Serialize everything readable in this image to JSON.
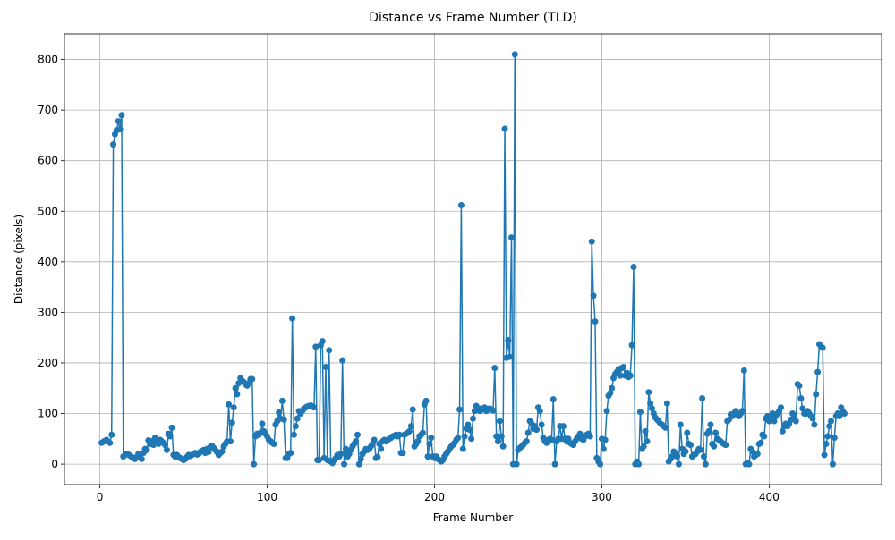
{
  "chart_data": {
    "type": "line",
    "title": "Distance vs Frame Number (TLD)",
    "xlabel": "Frame Number",
    "ylabel": "Distance (pixels)",
    "color": "#1f77b4",
    "grid": true,
    "marker": "circle",
    "xlim": [
      -21.2,
      467.2
    ],
    "ylim": [
      -40.5,
      850.5
    ],
    "xticks": [
      0,
      100,
      200,
      300,
      400
    ],
    "yticks": [
      0,
      100,
      200,
      300,
      400,
      500,
      600,
      700,
      800
    ],
    "x": [
      1,
      2,
      3,
      4,
      5,
      6,
      7,
      8,
      9,
      10,
      11,
      12,
      13,
      14,
      15,
      16,
      17,
      18,
      19,
      20,
      21,
      22,
      23,
      24,
      25,
      26,
      27,
      28,
      29,
      30,
      31,
      32,
      33,
      34,
      35,
      36,
      37,
      38,
      39,
      40,
      41,
      42,
      43,
      44,
      45,
      46,
      47,
      48,
      49,
      50,
      51,
      52,
      53,
      54,
      55,
      56,
      57,
      58,
      59,
      60,
      61,
      62,
      63,
      64,
      65,
      66,
      67,
      68,
      69,
      70,
      71,
      72,
      73,
      74,
      75,
      76,
      77,
      78,
      79,
      80,
      81,
      82,
      83,
      84,
      85,
      86,
      87,
      88,
      89,
      90,
      91,
      92,
      93,
      94,
      95,
      96,
      97,
      98,
      99,
      100,
      101,
      102,
      103,
      104,
      105,
      106,
      107,
      108,
      109,
      110,
      111,
      112,
      113,
      114,
      115,
      116,
      117,
      118,
      119,
      120,
      121,
      122,
      123,
      124,
      125,
      126,
      127,
      128,
      129,
      130,
      131,
      132,
      133,
      134,
      135,
      136,
      137,
      138,
      139,
      140,
      141,
      142,
      143,
      144,
      145,
      146,
      147,
      148,
      149,
      150,
      151,
      152,
      153,
      154,
      155,
      156,
      157,
      158,
      159,
      160,
      161,
      162,
      163,
      164,
      165,
      166,
      167,
      168,
      169,
      170,
      171,
      172,
      173,
      174,
      175,
      176,
      177,
      178,
      179,
      180,
      181,
      182,
      183,
      184,
      185,
      186,
      187,
      188,
      189,
      190,
      191,
      192,
      193,
      194,
      195,
      196,
      197,
      198,
      199,
      200,
      201,
      202,
      203,
      204,
      205,
      206,
      207,
      208,
      209,
      210,
      211,
      212,
      213,
      214,
      215,
      216,
      217,
      218,
      219,
      220,
      221,
      222,
      223,
      224,
      225,
      226,
      227,
      228,
      229,
      230,
      231,
      232,
      233,
      234,
      235,
      236,
      237,
      238,
      239,
      240,
      241,
      242,
      243,
      244,
      245,
      246,
      247,
      248,
      249,
      250,
      251,
      252,
      253,
      254,
      255,
      256,
      257,
      258,
      259,
      260,
      261,
      262,
      263,
      264,
      265,
      266,
      267,
      268,
      269,
      270,
      271,
      272,
      273,
      274,
      275,
      276,
      277,
      278,
      279,
      280,
      281,
      282,
      283,
      284,
      285,
      286,
      287,
      288,
      289,
      290,
      291,
      292,
      293,
      294,
      295,
      296,
      297,
      298,
      299,
      300,
      301,
      302,
      303,
      304,
      305,
      306,
      307,
      308,
      309,
      310,
      311,
      312,
      313,
      314,
      315,
      316,
      317,
      318,
      319,
      320,
      321,
      322,
      323,
      324,
      325,
      326,
      327,
      328,
      329,
      330,
      331,
      332,
      333,
      334,
      335,
      336,
      337,
      338,
      339,
      340,
      341,
      342,
      343,
      344,
      345,
      346,
      347,
      348,
      349,
      350,
      351,
      352,
      353,
      354,
      355,
      356,
      357,
      358,
      359,
      360,
      361,
      362,
      363,
      364,
      365,
      366,
      367,
      368,
      369,
      370,
      371,
      372,
      373,
      374,
      375,
      376,
      377,
      378,
      379,
      380,
      381,
      382,
      383,
      384,
      385,
      386,
      387,
      388,
      389,
      390,
      391,
      392,
      393,
      394,
      395,
      396,
      397,
      398,
      399,
      400,
      401,
      402,
      403,
      404,
      405,
      406,
      407,
      408,
      409,
      410,
      411,
      412,
      413,
      414,
      415,
      416,
      417,
      418,
      419,
      420,
      421,
      422,
      423,
      424,
      425,
      426,
      427,
      428,
      429,
      430,
      431,
      432,
      433,
      434,
      435,
      436,
      437,
      438,
      439,
      440,
      441,
      442,
      443,
      444,
      445
    ],
    "values": [
      42,
      44,
      46,
      48,
      44,
      42,
      58,
      632,
      652,
      660,
      678,
      662,
      690,
      15,
      18,
      20,
      19,
      17,
      14,
      12,
      10,
      14,
      20,
      18,
      10,
      22,
      30,
      28,
      47,
      40,
      45,
      38,
      52,
      42,
      40,
      48,
      45,
      42,
      38,
      28,
      60,
      55,
      72,
      18,
      15,
      18,
      14,
      12,
      10,
      8,
      10,
      14,
      18,
      16,
      18,
      20,
      22,
      19,
      20,
      24,
      26,
      28,
      22,
      30,
      24,
      34,
      36,
      32,
      28,
      24,
      18,
      22,
      25,
      35,
      40,
      45,
      118,
      45,
      82,
      112,
      150,
      138,
      160,
      170,
      165,
      162,
      158,
      155,
      160,
      168,
      168,
      0,
      55,
      60,
      58,
      62,
      80,
      65,
      60,
      55,
      48,
      45,
      42,
      40,
      78,
      85,
      102,
      90,
      125,
      88,
      12,
      12,
      20,
      22,
      288,
      58,
      75,
      90,
      105,
      100,
      105,
      110,
      112,
      114,
      115,
      116,
      114,
      112,
      232,
      8,
      8,
      235,
      243,
      12,
      192,
      8,
      225,
      5,
      2,
      8,
      12,
      18,
      15,
      20,
      205,
      0,
      30,
      15,
      20,
      28,
      35,
      40,
      45,
      58,
      0,
      10,
      20,
      25,
      30,
      28,
      30,
      35,
      40,
      48,
      12,
      14,
      40,
      30,
      45,
      48,
      45,
      48,
      50,
      52,
      55,
      56,
      58,
      55,
      58,
      22,
      22,
      58,
      60,
      62,
      65,
      75,
      108,
      35,
      40,
      45,
      55,
      58,
      62,
      118,
      125,
      15,
      40,
      52,
      15,
      12,
      15,
      10,
      8,
      5,
      8,
      15,
      20,
      25,
      30,
      35,
      38,
      42,
      48,
      52,
      108,
      512,
      30,
      55,
      70,
      78,
      68,
      50,
      90,
      105,
      115,
      108,
      105,
      110,
      108,
      112,
      105,
      108,
      110,
      108,
      106,
      190,
      55,
      45,
      85,
      55,
      35,
      663,
      210,
      245,
      212,
      448,
      0,
      810,
      0,
      28,
      32,
      35,
      38,
      42,
      45,
      62,
      85,
      80,
      70,
      75,
      68,
      112,
      105,
      78,
      52,
      45,
      42,
      48,
      50,
      48,
      128,
      0,
      45,
      50,
      75,
      50,
      75,
      50,
      45,
      50,
      42,
      40,
      38,
      45,
      50,
      55,
      60,
      50,
      48,
      55,
      58,
      60,
      55,
      440,
      333,
      282,
      12,
      5,
      0,
      50,
      30,
      48,
      105,
      135,
      140,
      150,
      170,
      178,
      182,
      188,
      175,
      190,
      192,
      175,
      180,
      172,
      175,
      235,
      390,
      0,
      5,
      0,
      103,
      30,
      35,
      65,
      45,
      142,
      120,
      110,
      100,
      92,
      88,
      85,
      80,
      78,
      75,
      72,
      120,
      5,
      10,
      15,
      25,
      22,
      15,
      0,
      78,
      30,
      20,
      25,
      62,
      40,
      38,
      15,
      18,
      20,
      25,
      30,
      28,
      130,
      15,
      0,
      60,
      65,
      78,
      40,
      35,
      62,
      50,
      48,
      45,
      42,
      40,
      38,
      85,
      88,
      98,
      95,
      100,
      105,
      98,
      95,
      100,
      105,
      185,
      0,
      2,
      0,
      30,
      25,
      15,
      18,
      20,
      40,
      42,
      58,
      55,
      90,
      95,
      85,
      90,
      100,
      85,
      95,
      100,
      105,
      112,
      65,
      75,
      80,
      75,
      80,
      88,
      100,
      95,
      85,
      158,
      155,
      130,
      110,
      100,
      100,
      105,
      100,
      95,
      90,
      78,
      138,
      182,
      237,
      232,
      230,
      18,
      40,
      55,
      75,
      85,
      0,
      52,
      95,
      100,
      95,
      112,
      105,
      100
    ]
  }
}
